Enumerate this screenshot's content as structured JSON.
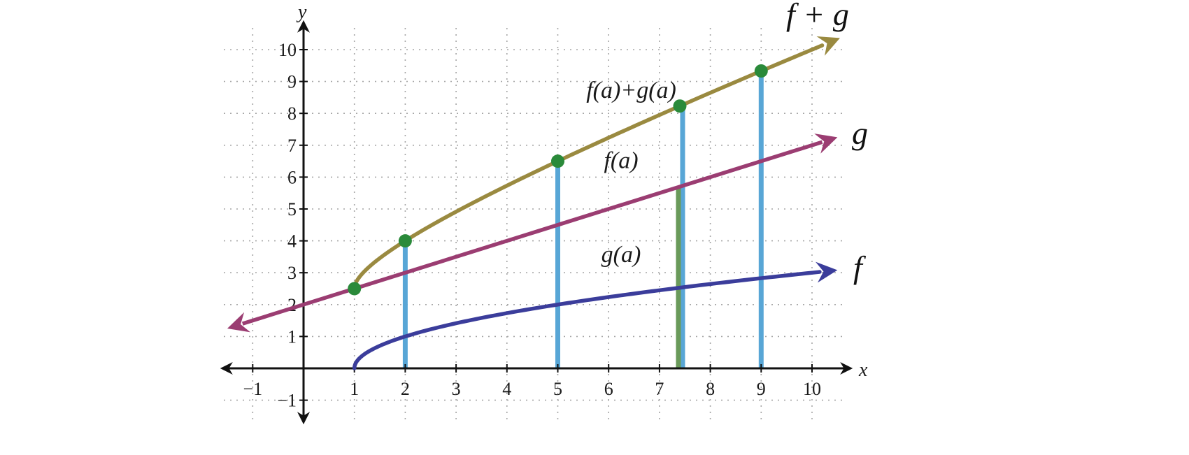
{
  "chart_data": {
    "type": "line",
    "title": "",
    "xlabel": "x",
    "ylabel": "y",
    "xlim": [
      -1.5,
      10.5
    ],
    "ylim": [
      -1.5,
      10.5
    ],
    "grid": true,
    "x_ticks": [
      -1,
      1,
      2,
      3,
      4,
      5,
      6,
      7,
      8,
      9,
      10
    ],
    "x_tick_labels": [
      "−1",
      "1",
      "2",
      "3",
      "4",
      "5",
      "6",
      "7",
      "8",
      "9",
      "10"
    ],
    "y_ticks": [
      -1,
      1,
      2,
      3,
      4,
      5,
      6,
      7,
      8,
      9,
      10
    ],
    "y_tick_labels": [
      "−1",
      "1",
      "2",
      "3",
      "4",
      "5",
      "6",
      "7",
      "8",
      "9",
      "10"
    ],
    "series": [
      {
        "name": "f",
        "color": "#3b3d9b",
        "domain": [
          1,
          10.5
        ],
        "x": [
          1,
          2,
          5,
          7.4,
          9,
          10.5
        ],
        "y": [
          0,
          1,
          2,
          2.53,
          2.83,
          3.08
        ]
      },
      {
        "name": "g",
        "color": "#9b3d72",
        "domain": [
          -1.5,
          10.5
        ],
        "x": [
          -1.5,
          1,
          2,
          5,
          7.4,
          9,
          10.5
        ],
        "y": [
          1.25,
          2.5,
          3,
          4.5,
          5.7,
          6.5,
          7.25
        ]
      },
      {
        "name": "f + g",
        "color": "#9a8a40",
        "domain": [
          1,
          10.5
        ],
        "x": [
          1,
          2,
          5,
          7.4,
          9,
          10.5
        ],
        "y": [
          2.5,
          4,
          6.5,
          8.23,
          9.33,
          10.33
        ]
      }
    ],
    "points": [
      {
        "x": 1,
        "y": 2.5
      },
      {
        "x": 2,
        "y": 4
      },
      {
        "x": 5,
        "y": 6.5
      },
      {
        "x": 7.4,
        "y": 8.23
      },
      {
        "x": 9,
        "y": 9.33
      }
    ],
    "vertical_segments": [
      {
        "x": 2,
        "y0": 0,
        "y1": 4
      },
      {
        "x": 5,
        "y0": 0,
        "y1": 6.5
      },
      {
        "x": 7.4,
        "y0": 0,
        "y1": 8.23
      },
      {
        "x": 9,
        "y0": 0,
        "y1": 9.33
      }
    ],
    "highlight_segment": {
      "x": 7.4,
      "y0": 0,
      "y1": 5.7
    },
    "annotations": [
      {
        "text": "f(a)+g(a)",
        "x": 6.5,
        "y": 8.75
      },
      {
        "text": "f(a)",
        "x": 6.3,
        "y": 6.55
      },
      {
        "text": "g(a)",
        "x": 6.3,
        "y": 3.6
      }
    ],
    "colors": {
      "grid": "#a6a6a6",
      "axis": "#111111",
      "segment": "#58a6d6",
      "highlight": "#6a9a5a",
      "point": "#2a8a3a"
    }
  }
}
